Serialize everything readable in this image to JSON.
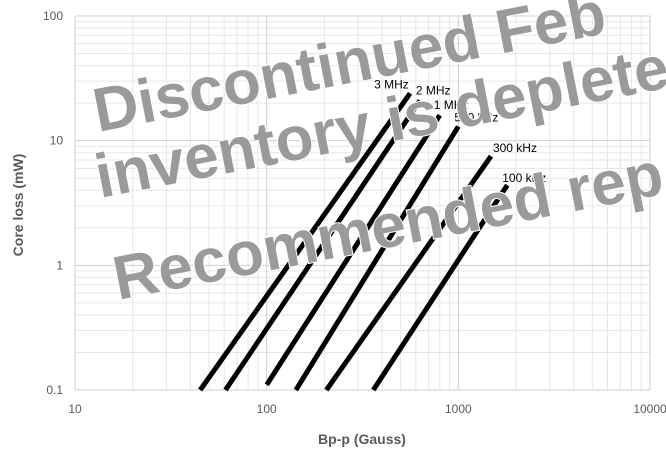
{
  "chart_data": {
    "type": "line",
    "x_scale": "log",
    "y_scale": "log",
    "xlim": [
      10,
      10000
    ],
    "ylim": [
      0.1,
      100
    ],
    "xlabel": "Bp-p (Gauss)",
    "ylabel": "Core loss (mW)",
    "x_ticks": [
      "10",
      "100",
      "1000",
      "10000"
    ],
    "y_ticks": [
      "0.1",
      "1",
      "10",
      "100"
    ],
    "grid": true,
    "line_color": "#000000",
    "series": [
      {
        "name": "3 MHz",
        "x": [
          45,
          560
        ],
        "y": [
          0.1,
          24
        ]
      },
      {
        "name": "2 MHz",
        "x": [
          61,
          630
        ],
        "y": [
          0.1,
          21
        ]
      },
      {
        "name": "1 MHz",
        "x": [
          100,
          800
        ],
        "y": [
          0.11,
          16
        ]
      },
      {
        "name": "500 kHz",
        "x": [
          142,
          1000
        ],
        "y": [
          0.1,
          13
        ]
      },
      {
        "name": "300 kHz",
        "x": [
          205,
          1480
        ],
        "y": [
          0.1,
          7.5
        ]
      },
      {
        "name": "100 kHz",
        "x": [
          360,
          1800
        ],
        "y": [
          0.1,
          4.4
        ]
      }
    ],
    "watermark": [
      "Discontinued Feb",
      "inventory is deplete",
      "Recommended rep"
    ],
    "watermark_color": "#9a9a9a"
  }
}
